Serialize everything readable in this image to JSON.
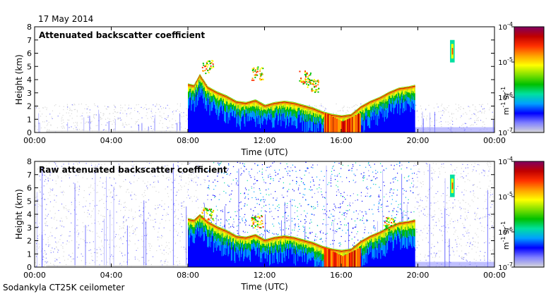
{
  "date": "17 May 2014",
  "footer": "Sodankyla CT25K ceilometer",
  "colors": {
    "scale": [
      "#d8d8d8",
      "#8080ff",
      "#0000ff",
      "#00a0ff",
      "#00e0a0",
      "#00c000",
      "#80e000",
      "#ffff00",
      "#ffa000",
      "#ff3000",
      "#c00000",
      "#800060"
    ],
    "cloud_core": "#c00000",
    "background_noise": "#d0d0d0"
  },
  "chart_data": [
    {
      "type": "heatmap",
      "title": "Attenuated backscatter coefficient",
      "xlabel": "Time (UTC)",
      "ylabel": "Height (km)",
      "x_ticks": [
        "00:00",
        "04:00",
        "08:00",
        "12:00",
        "16:00",
        "20:00",
        "00:00"
      ],
      "x_range": [
        0,
        24
      ],
      "y_ticks": [
        "0",
        "1",
        "2",
        "3",
        "4",
        "5",
        "6",
        "7",
        "8"
      ],
      "y_range": [
        0,
        8
      ],
      "colorbar": {
        "label": "m",
        "label_exp": "-1",
        "label_unit": " sr",
        "label_unit_exp": "-1",
        "ticks": [
          {
            "base": "10",
            "exp": "-4"
          },
          {
            "base": "10",
            "exp": "-5"
          },
          {
            "base": "10",
            "exp": "-6"
          },
          {
            "base": "10",
            "exp": "-7"
          }
        ],
        "range": [
          1e-07,
          0.0001
        ],
        "scale": "log"
      },
      "noise_level": 0.2,
      "cloud_layer": [
        [
          8.0,
          3.6
        ],
        [
          8.3,
          3.5
        ],
        [
          8.6,
          4.3
        ],
        [
          9.0,
          3.4
        ],
        [
          9.5,
          3.0
        ],
        [
          10.0,
          2.7
        ],
        [
          10.5,
          2.3
        ],
        [
          11.0,
          2.2
        ],
        [
          11.5,
          2.4
        ],
        [
          12.0,
          2.0
        ],
        [
          12.5,
          2.2
        ],
        [
          13.0,
          2.3
        ],
        [
          13.5,
          2.2
        ],
        [
          14.0,
          2.0
        ],
        [
          14.5,
          1.8
        ],
        [
          15.0,
          1.5
        ],
        [
          15.5,
          1.3
        ],
        [
          16.0,
          1.2
        ],
        [
          16.5,
          1.3
        ],
        [
          17.0,
          1.9
        ],
        [
          17.5,
          2.3
        ],
        [
          18.0,
          2.6
        ],
        [
          18.5,
          3.0
        ],
        [
          19.0,
          3.3
        ],
        [
          19.5,
          3.4
        ],
        [
          19.8,
          3.5
        ]
      ],
      "fog_event": {
        "start": 15.1,
        "end": 17.0,
        "top": 1.5
      },
      "isolated_cloud": {
        "time": 21.8,
        "base": 5.3,
        "top": 7.0
      },
      "extra_clouds": [
        [
          9.0,
          5.0
        ],
        [
          11.6,
          4.5
        ],
        [
          14.1,
          4.2
        ],
        [
          14.5,
          3.6
        ]
      ]
    },
    {
      "type": "heatmap",
      "title": "Raw attenuated backscatter coefficient",
      "xlabel": "Time (UTC)",
      "ylabel": "Height (km)",
      "x_ticks": [
        "00:00",
        "04:00",
        "08:00",
        "12:00",
        "16:00",
        "20:00",
        "00:00"
      ],
      "x_range": [
        0,
        24
      ],
      "y_ticks": [
        "0",
        "1",
        "2",
        "3",
        "4",
        "5",
        "6",
        "7",
        "8"
      ],
      "y_range": [
        0,
        8
      ],
      "colorbar": {
        "label": "m",
        "label_exp": "-1",
        "label_unit": " sr",
        "label_unit_exp": "-1",
        "ticks": [
          {
            "base": "10",
            "exp": "-4"
          },
          {
            "base": "10",
            "exp": "-5"
          },
          {
            "base": "10",
            "exp": "-6"
          },
          {
            "base": "10",
            "exp": "-7"
          }
        ],
        "range": [
          1e-07,
          0.0001
        ],
        "scale": "log"
      },
      "noise_level": 0.9,
      "cloud_layer": [
        [
          8.0,
          3.6
        ],
        [
          8.3,
          3.5
        ],
        [
          8.6,
          3.9
        ],
        [
          9.0,
          3.4
        ],
        [
          9.5,
          3.0
        ],
        [
          10.0,
          2.7
        ],
        [
          10.5,
          2.3
        ],
        [
          11.0,
          2.2
        ],
        [
          11.5,
          2.4
        ],
        [
          12.0,
          2.0
        ],
        [
          12.5,
          2.2
        ],
        [
          13.0,
          2.3
        ],
        [
          13.5,
          2.2
        ],
        [
          14.0,
          2.0
        ],
        [
          14.5,
          1.8
        ],
        [
          15.0,
          1.5
        ],
        [
          15.5,
          1.3
        ],
        [
          16.0,
          1.2
        ],
        [
          16.5,
          1.3
        ],
        [
          17.0,
          1.9
        ],
        [
          17.5,
          2.3
        ],
        [
          18.0,
          2.6
        ],
        [
          18.5,
          3.0
        ],
        [
          19.0,
          3.3
        ],
        [
          19.5,
          3.4
        ],
        [
          19.8,
          3.5
        ]
      ],
      "fog_event": {
        "start": 15.1,
        "end": 17.0,
        "top": 1.5
      },
      "isolated_cloud": {
        "time": 21.8,
        "base": 5.3,
        "top": 7.0
      },
      "extra_clouds": [
        [
          9.0,
          4.0
        ],
        [
          11.6,
          3.5
        ],
        [
          18.5,
          3.3
        ]
      ]
    }
  ]
}
